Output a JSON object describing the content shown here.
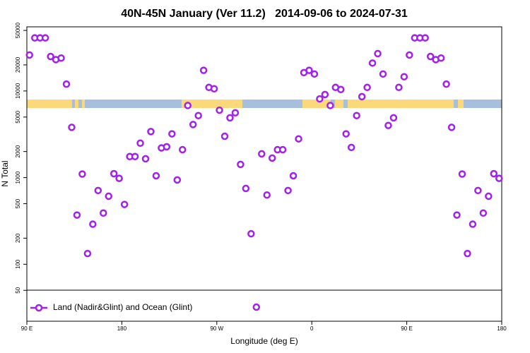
{
  "chart_data": {
    "type": "scatter",
    "title": "40N-45N January (Ver 11.2)   2014-09-06 to 2024-07-31",
    "x_label": "Longitude (deg E)",
    "y_label": "N Total",
    "xlim": [
      90,
      540
    ],
    "xticks": [
      {
        "value": 90,
        "label": "90 E"
      },
      180,
      {
        "value": 270,
        "label": "90 W"
      },
      {
        "value": 360,
        "label": "0"
      },
      {
        "value": 450,
        "label": "90 E"
      },
      {
        "value": 540,
        "label": "180"
      }
    ],
    "ylim": [
      22,
      55000
    ],
    "y_log": true,
    "yticks": [
      50,
      100,
      200,
      500,
      1000,
      2000,
      5000,
      10000,
      20000,
      50000
    ],
    "grid": false,
    "legend_position": "bottom-left",
    "x": [
      92.5,
      97.5,
      102.5,
      107.5,
      112.5,
      117.5,
      122.5,
      127.5,
      132.5,
      137.5,
      142.5,
      147.5,
      152.5,
      157.5,
      162.5,
      167.5,
      172.5,
      177.5,
      182.5,
      187.5,
      192.5,
      197.5,
      202.5,
      207.5,
      212.5,
      217.5,
      222.5,
      227.5,
      232.5,
      237.5,
      242.5,
      247.5,
      252.5,
      257.5,
      262.5,
      267.5,
      272.5,
      277.5,
      282.5,
      287.5,
      292.5,
      297.5,
      302.5,
      307.5,
      312.5,
      317.5,
      322.5,
      327.5,
      332.5,
      337.5,
      342.5,
      347.5,
      352.5,
      357.5,
      362.5,
      367.5,
      372.5,
      377.5,
      382.5,
      387.5,
      392.5,
      397.5,
      402.5,
      407.5,
      412.5,
      417.5,
      422.5,
      427.5,
      432.5,
      437.5,
      442.5,
      447.5,
      452.5,
      457.5,
      462.5,
      467.5,
      472.5,
      477.5,
      482.5,
      487.5,
      492.5,
      497.5,
      502.5,
      507.5,
      512.5,
      517.5,
      522.5,
      527.5,
      532.5,
      537.5
    ],
    "series": [
      {
        "name": "Land (Nadir&Glint) and Ocean (Glint)",
        "color": "#a020f0",
        "values": [
          26000,
          41000,
          41000,
          41000,
          25000,
          23000,
          24000,
          12000,
          3800,
          370,
          1100,
          133,
          290,
          710,
          390,
          610,
          1110,
          980,
          490,
          1750,
          1750,
          2500,
          1650,
          3400,
          1050,
          2200,
          2270,
          3200,
          940,
          2100,
          6800,
          4100,
          5200,
          17300,
          11000,
          10600,
          6000,
          3000,
          4900,
          5600,
          1420,
          750,
          225,
          32,
          1880,
          630,
          1680,
          2100,
          2100,
          710,
          1050,
          2800,
          16300,
          17300,
          15700,
          8100,
          9100,
          6800,
          11000,
          10400,
          3200,
          2230,
          5200,
          8600,
          11000,
          21000,
          27000,
          15700,
          4000,
          4900,
          11000,
          14600,
          26000,
          41000,
          41000,
          41000,
          25000,
          23000,
          24000,
          12000,
          3800,
          370,
          1100,
          133,
          290,
          710,
          390,
          610,
          1110,
          980
        ]
      }
    ]
  }
}
